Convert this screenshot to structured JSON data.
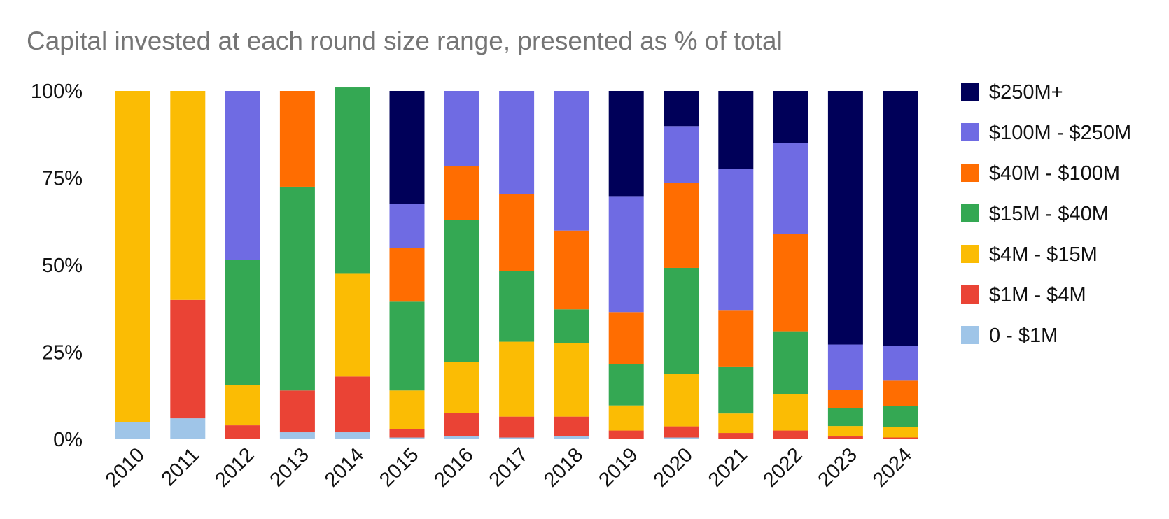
{
  "chart_data": {
    "type": "bar",
    "stacked": true,
    "normalized": true,
    "title": "Capital invested at each round size range, presented as % of total",
    "xlabel": "",
    "ylabel": "",
    "ylim": [
      0,
      100
    ],
    "y_ticks": [
      "0%",
      "25%",
      "50%",
      "75%",
      "100%"
    ],
    "legend_position": "right",
    "grid": false,
    "categories": [
      "2010",
      "2011",
      "2012",
      "2013",
      "2014",
      "2015",
      "2016",
      "2017",
      "2018",
      "2019",
      "2020",
      "2021",
      "2022",
      "2023",
      "2024"
    ],
    "series": [
      {
        "name": "0 - $1M",
        "color": "#9fc5e8",
        "values": [
          5,
          6,
          0,
          2,
          2,
          0.5,
          1,
          0.5,
          1,
          0,
          0.5,
          0,
          0,
          0,
          0
        ]
      },
      {
        "name": "$1M - $4M",
        "color": "#ea4335",
        "values": [
          0,
          34,
          4,
          12,
          16,
          2.5,
          6.5,
          6,
          5.5,
          2.5,
          3.2,
          1.8,
          2.5,
          0.8,
          0.5
        ]
      },
      {
        "name": "$4M - $15M",
        "color": "#fbbc04",
        "values": [
          95,
          60,
          11.5,
          0,
          29.5,
          11,
          14.7,
          21.5,
          21.2,
          7.2,
          15.1,
          5.6,
          10.5,
          3,
          3
        ]
      },
      {
        "name": "$15M - $40M",
        "color": "#34a853",
        "values": [
          0,
          0,
          36,
          58.5,
          53.5,
          25.5,
          40.8,
          20.2,
          9.6,
          11.9,
          30.4,
          13.5,
          18,
          5.2,
          6
        ]
      },
      {
        "name": "$40M - $100M",
        "color": "#ff6d01",
        "values": [
          0,
          0,
          0,
          27.5,
          0,
          15.5,
          15.4,
          22.2,
          22.6,
          14.9,
          24.3,
          16.2,
          28,
          5.2,
          7.5
        ]
      },
      {
        "name": "$100M - $250M",
        "color": "#6f6be3",
        "values": [
          0,
          0,
          48.5,
          0,
          0,
          12.5,
          21.6,
          29.6,
          40.1,
          33.3,
          16.4,
          40.5,
          26,
          13,
          9.8
        ]
      },
      {
        "name": "$250M+",
        "color": "#000059",
        "values": [
          0,
          0,
          0,
          0,
          0,
          32.5,
          0,
          0,
          0,
          30.2,
          10.1,
          22.4,
          15,
          72.8,
          73.2
        ]
      }
    ]
  }
}
